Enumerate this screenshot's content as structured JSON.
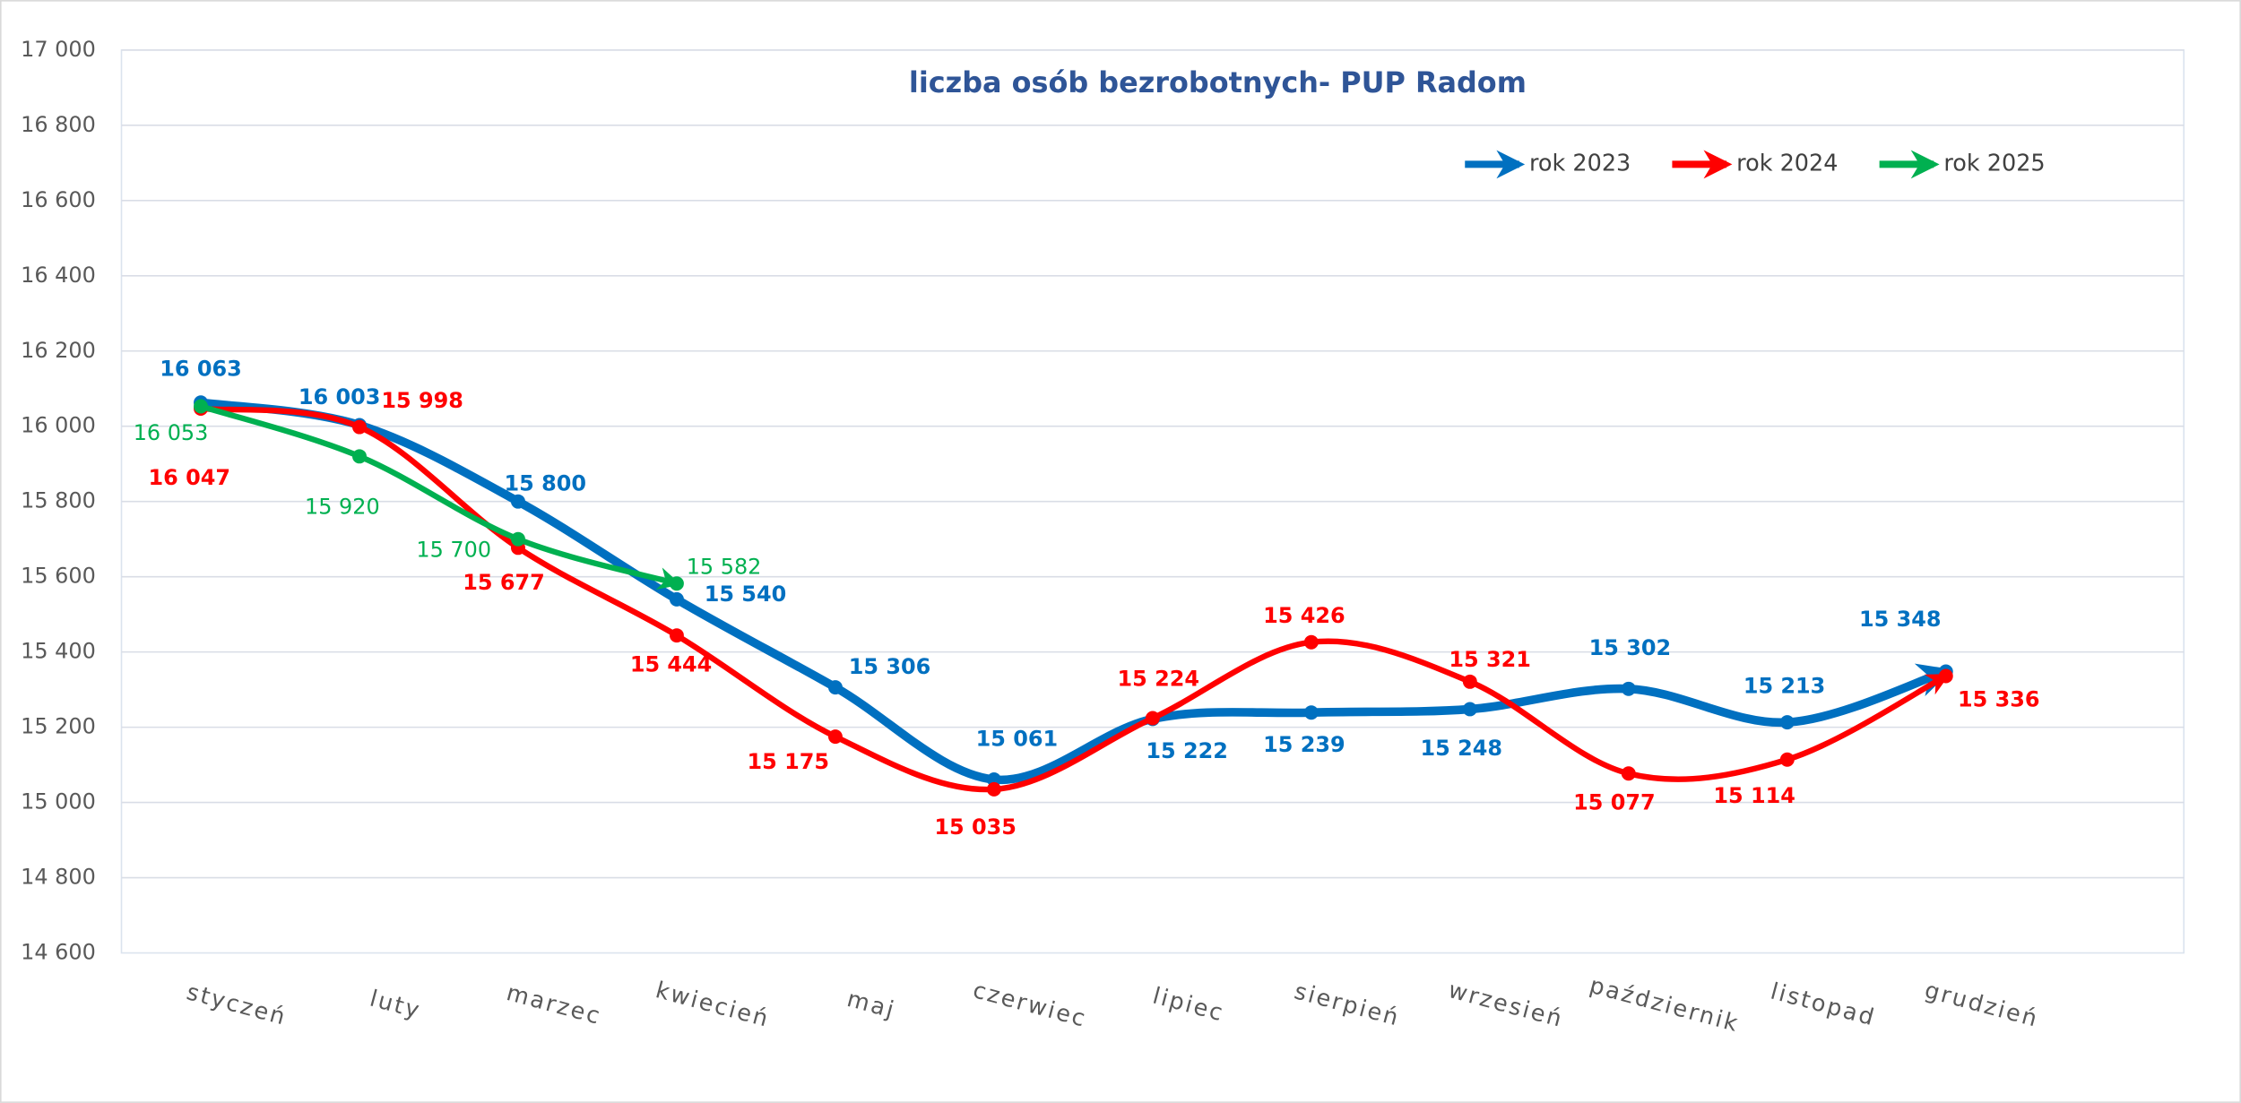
{
  "chart_data": {
    "type": "line",
    "title": "liczba osób bezrobotnych- PUP Radom",
    "categories": [
      "styczeń",
      "luty",
      "marzec",
      "kwiecień",
      "maj",
      "czerwiec",
      "lipiec",
      "sierpień",
      "wrzesień",
      "październik",
      "listopad",
      "grudzień"
    ],
    "series": [
      {
        "name": "rok 2023",
        "color": "#0070c0",
        "values": [
          16063,
          16003,
          15800,
          15540,
          15306,
          15061,
          15222,
          15239,
          15248,
          15302,
          15213,
          15348
        ],
        "value_labels": [
          "16 063",
          "16 003",
          "15 800",
          "15 540",
          "15 306",
          "15 061",
          "15 222",
          "15 239",
          "15 248",
          "15 302",
          "15 213",
          "15 348"
        ]
      },
      {
        "name": "rok 2024",
        "color": "#ff0000",
        "values": [
          16047,
          15998,
          15677,
          15444,
          15175,
          15035,
          15224,
          15426,
          15321,
          15077,
          15114,
          15336
        ],
        "value_labels": [
          "16 047",
          "15 998",
          "15 677",
          "15 444",
          "15 175",
          "15 035",
          "15 224",
          "15 426",
          "15 321",
          "15 077",
          "15 114",
          "15 336"
        ]
      },
      {
        "name": "rok 2025",
        "color": "#00b050",
        "values": [
          16053,
          15920,
          15700,
          15582,
          null,
          null,
          null,
          null,
          null,
          null,
          null,
          null
        ],
        "value_labels": [
          "16 053",
          "15 920",
          "15 700",
          "15 582",
          null,
          null,
          null,
          null,
          null,
          null,
          null,
          null
        ]
      }
    ],
    "ylim": [
      14600,
      17000
    ],
    "yticks": [
      {
        "value": 14600,
        "label": "14 600"
      },
      {
        "value": 14800,
        "label": "14 800"
      },
      {
        "value": 15000,
        "label": "15 000"
      },
      {
        "value": 15200,
        "label": "15 200"
      },
      {
        "value": 15400,
        "label": "15 400"
      },
      {
        "value": 15600,
        "label": "15 600"
      },
      {
        "value": 15800,
        "label": "15 800"
      },
      {
        "value": 16000,
        "label": "16 000"
      },
      {
        "value": 16200,
        "label": "16 200"
      },
      {
        "value": 16400,
        "label": "16 400"
      },
      {
        "value": 16600,
        "label": "16 600"
      },
      {
        "value": 16800,
        "label": "16 800"
      },
      {
        "value": 17000,
        "label": "17 000"
      }
    ],
    "grid": true,
    "legend": "top-right"
  }
}
